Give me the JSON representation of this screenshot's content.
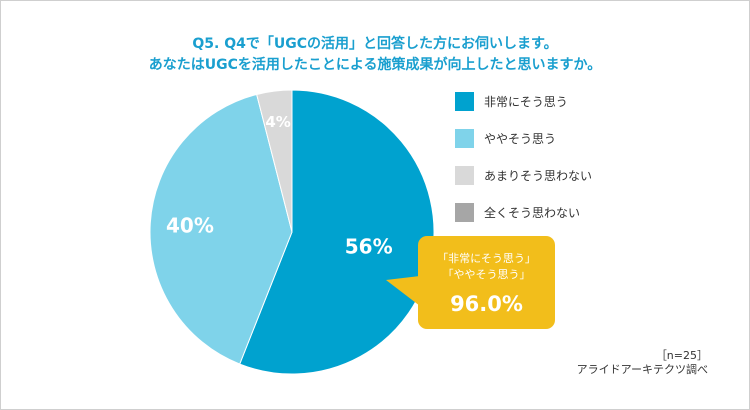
{
  "chart_data": {
    "type": "pie",
    "title_lines": [
      "Q5. Q4で「UGCの活用」と回答した方にお伺いします。",
      "あなたはUGCを活用したことによる施策成果が向上したと思いますか。"
    ],
    "slices": [
      {
        "name": "非常にそう思う",
        "value": 56,
        "label": "56%",
        "color": "#00a2cf"
      },
      {
        "name": "ややそう思う",
        "value": 40,
        "label": "40%",
        "color": "#7fd3ea"
      },
      {
        "name": "あまりそう思わない",
        "value": 4,
        "label": "4%",
        "color": "#d9d9d9"
      },
      {
        "name": "全くそう思わない",
        "value": 0,
        "label": "",
        "color": "#a6a6a6"
      }
    ],
    "legend_position": "right",
    "callout": {
      "lines": [
        "「非常にそう思う」",
        "「ややそう思う」"
      ],
      "value": "96.0%",
      "color": "#f2be1b"
    },
    "sample_size": "［n=25］",
    "source": "アライドアーキテクツ調べ"
  }
}
